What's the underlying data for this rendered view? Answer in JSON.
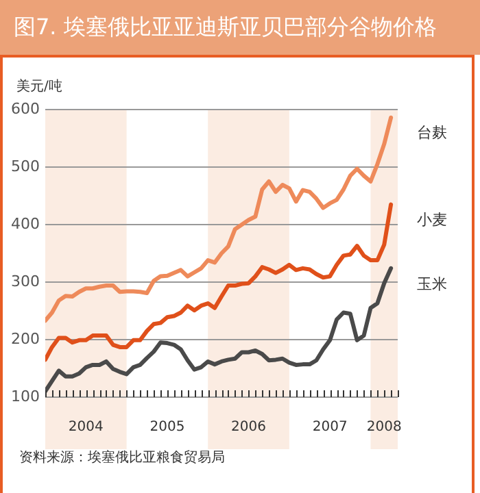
{
  "chart_data": {
    "type": "line",
    "title": "图7. 埃塞俄比亚亚迪斯亚贝巴部分谷物价格",
    "ylabel": "美元/吨",
    "annotations": [
      "资料来源：埃塞俄比亚粮食贸易局"
    ],
    "x": [
      "2004-01",
      "2004-02",
      "2004-03",
      "2004-04",
      "2004-05",
      "2004-06",
      "2004-07",
      "2004-08",
      "2004-09",
      "2004-10",
      "2004-11",
      "2004-12",
      "2005-01",
      "2005-02",
      "2005-03",
      "2005-04",
      "2005-05",
      "2005-06",
      "2005-07",
      "2005-08",
      "2005-09",
      "2005-10",
      "2005-11",
      "2005-12",
      "2006-01",
      "2006-02",
      "2006-03",
      "2006-04",
      "2006-05",
      "2006-06",
      "2006-07",
      "2006-08",
      "2006-09",
      "2006-10",
      "2006-11",
      "2006-12",
      "2007-01",
      "2007-02",
      "2007-03",
      "2007-04",
      "2007-05",
      "2007-06",
      "2007-07",
      "2007-08",
      "2007-09",
      "2007-10",
      "2007-11",
      "2007-12",
      "2008-01",
      "2008-02",
      "2008-03",
      "2008-04"
    ],
    "series": [
      {
        "name": "台麸",
        "color": "#ee8a5a",
        "values": [
          233,
          247,
          268,
          276,
          275,
          283,
          289,
          289,
          292,
          294,
          294,
          283,
          284,
          284,
          283,
          281,
          302,
          310,
          311,
          316,
          321,
          310,
          317,
          324,
          338,
          334,
          350,
          362,
          392,
          400,
          408,
          414,
          461,
          475,
          457,
          469,
          463,
          440,
          460,
          457,
          445,
          429,
          437,
          443,
          461,
          485,
          497,
          485,
          475,
          505,
          540,
          586
        ]
      },
      {
        "name": "小麦",
        "color": "#e0501a",
        "values": [
          165,
          187,
          203,
          203,
          195,
          199,
          199,
          207,
          207,
          207,
          191,
          187,
          187,
          199,
          199,
          215,
          227,
          229,
          239,
          241,
          247,
          259,
          251,
          259,
          263,
          255,
          275,
          294,
          294,
          297,
          298,
          310,
          326,
          322,
          316,
          322,
          330,
          321,
          324,
          322,
          314,
          308,
          310,
          330,
          346,
          348,
          363,
          346,
          338,
          338,
          365,
          435
        ]
      },
      {
        "name": "玉米",
        "color": "#4a4a4a",
        "values": [
          110,
          128,
          146,
          136,
          136,
          141,
          152,
          156,
          156,
          162,
          149,
          144,
          140,
          152,
          156,
          168,
          179,
          195,
          194,
          191,
          183,
          164,
          148,
          152,
          162,
          157,
          162,
          165,
          167,
          178,
          178,
          181,
          175,
          164,
          165,
          167,
          160,
          156,
          157,
          157,
          164,
          183,
          199,
          235,
          247,
          245,
          199,
          207,
          255,
          263,
          298,
          324
        ]
      }
    ],
    "xlim": [
      "2004-01",
      "2008-05"
    ],
    "xticks": [
      {
        "value": "2004-01",
        "label": null
      },
      {
        "value": "2004-02",
        "label": null
      },
      {
        "value": "2004-03",
        "label": null
      },
      {
        "value": "2004-04",
        "label": null
      },
      {
        "value": "2004-05",
        "label": null
      },
      {
        "value": "2004-06",
        "label": null
      },
      {
        "value": "2004-07",
        "label": "2004"
      },
      {
        "value": "2004-08",
        "label": null
      },
      {
        "value": "2004-09",
        "label": null
      },
      {
        "value": "2004-10",
        "label": null
      },
      {
        "value": "2004-11",
        "label": null
      },
      {
        "value": "2004-12",
        "label": null
      },
      {
        "value": "2005-01",
        "label": null
      },
      {
        "value": "2005-02",
        "label": null
      },
      {
        "value": "2005-03",
        "label": null
      },
      {
        "value": "2005-04",
        "label": null
      },
      {
        "value": "2005-05",
        "label": null
      },
      {
        "value": "2005-06",
        "label": null
      },
      {
        "value": "2005-07",
        "label": "2005"
      },
      {
        "value": "2005-08",
        "label": null
      },
      {
        "value": "2005-09",
        "label": null
      },
      {
        "value": "2005-10",
        "label": null
      },
      {
        "value": "2005-11",
        "label": null
      },
      {
        "value": "2005-12",
        "label": null
      },
      {
        "value": "2006-01",
        "label": null
      },
      {
        "value": "2006-02",
        "label": null
      },
      {
        "value": "2006-03",
        "label": null
      },
      {
        "value": "2006-04",
        "label": null
      },
      {
        "value": "2006-05",
        "label": null
      },
      {
        "value": "2006-06",
        "label": null
      },
      {
        "value": "2006-07",
        "label": "2006"
      },
      {
        "value": "2006-08",
        "label": null
      },
      {
        "value": "2006-09",
        "label": null
      },
      {
        "value": "2006-10",
        "label": null
      },
      {
        "value": "2006-11",
        "label": null
      },
      {
        "value": "2006-12",
        "label": null
      },
      {
        "value": "2007-01",
        "label": null
      },
      {
        "value": "2007-02",
        "label": null
      },
      {
        "value": "2007-03",
        "label": null
      },
      {
        "value": "2007-04",
        "label": null
      },
      {
        "value": "2007-05",
        "label": null
      },
      {
        "value": "2007-06",
        "label": null
      },
      {
        "value": "2007-07",
        "label": "2007"
      },
      {
        "value": "2007-08",
        "label": null
      },
      {
        "value": "2007-09",
        "label": null
      },
      {
        "value": "2007-10",
        "label": null
      },
      {
        "value": "2007-11",
        "label": null
      },
      {
        "value": "2007-12",
        "label": null
      },
      {
        "value": "2008-01",
        "label": null
      },
      {
        "value": "2008-02",
        "label": null
      },
      {
        "value": "2008-03",
        "label": "2008"
      },
      {
        "value": "2008-04",
        "label": null
      },
      {
        "value": "2008-05",
        "label": null
      }
    ],
    "ylim": [
      100,
      600
    ],
    "yticks": [
      100,
      200,
      300,
      400,
      500,
      600
    ],
    "bands": [
      {
        "axis": "x",
        "from": "2004-01",
        "to": "2005-01",
        "color": "#fbece2"
      },
      {
        "axis": "x",
        "from": "2006-01",
        "to": "2007-01",
        "color": "#fbece2"
      },
      {
        "axis": "x",
        "from": "2008-01",
        "to": "2008-05",
        "color": "#fbece2"
      }
    ],
    "grid": "y",
    "marker": "none",
    "line_style": "solid"
  }
}
